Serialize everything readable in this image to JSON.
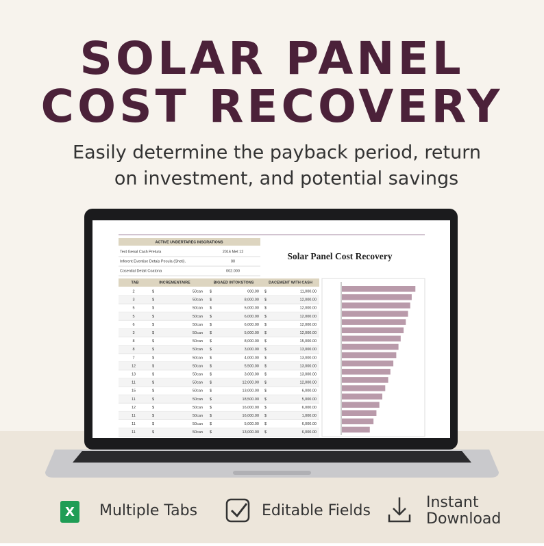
{
  "header": {
    "title_lines": [
      "SOLAR PANEL",
      "COST RECOVERY"
    ],
    "subtitle_lines": [
      "Easily determine the payback period, return",
      "on investment, and potential savings"
    ]
  },
  "spreadsheet": {
    "title": "Solar Panel Cost Recovery",
    "info_box": {
      "heading": "ACTIVE UNDERTAREC INSGRATIONS",
      "rows": [
        [
          "Text Genal Cash Pretura",
          "2016 Met 12"
        ],
        [
          "Inferent Eventise Detais Pecula (Sheti).",
          "00"
        ],
        [
          "Cosential Detait Coatona",
          "002.000"
        ]
      ]
    },
    "currency": "$",
    "table": {
      "columns": [
        "TAB",
        "INCREMENTAIRE",
        "BIGAED INTOKSTONS",
        "DACEMENT WITH CASH"
      ],
      "rows": [
        [
          "2",
          "50can",
          "000.00",
          "11,000.00"
        ],
        [
          "3",
          "50can",
          "8,000.00",
          "12,000.00"
        ],
        [
          "5",
          "50can",
          "5,000.00",
          "12,000.00"
        ],
        [
          "5",
          "50can",
          "6,000.00",
          "12,000.00"
        ],
        [
          "6",
          "50can",
          "6,000.00",
          "12,000.00"
        ],
        [
          "3",
          "50can",
          "5,000.00",
          "12,000.00"
        ],
        [
          "8",
          "50can",
          "8,000.00",
          "15,000.00"
        ],
        [
          "8",
          "50can",
          "3,000.00",
          "13,000.00"
        ],
        [
          "7",
          "50can",
          "4,000.00",
          "13,000.00"
        ],
        [
          "12",
          "50can",
          "5,500.00",
          "13,000.00"
        ],
        [
          "13",
          "50can",
          "3,000.00",
          "13,000.00"
        ],
        [
          "11",
          "50can",
          "12,000.00",
          "12,000.00"
        ],
        [
          "15",
          "50can",
          "13,000.00",
          "6,000.00"
        ],
        [
          "11",
          "50can",
          "18,500.00",
          "5,000.00"
        ],
        [
          "12",
          "50can",
          "16,000.00",
          "6,000.00"
        ],
        [
          "11",
          "50can",
          "16,000.00",
          "1,000.00"
        ],
        [
          "11",
          "50can",
          "5,000.00",
          "6,000.00"
        ],
        [
          "11",
          "50can",
          "13,000.00",
          "6,000.00"
        ]
      ]
    },
    "chart": {
      "type": "bar",
      "orientation": "horizontal",
      "color": "#b99aaa",
      "xlim": [
        0,
        110
      ],
      "values": [
        100,
        95,
        93,
        90,
        87,
        84,
        80,
        77,
        74,
        70,
        66,
        63,
        59,
        55,
        51,
        47,
        43,
        38
      ]
    }
  },
  "features": [
    {
      "label": "Multiple Tabs"
    },
    {
      "label": "Editable Fields"
    },
    {
      "label": "Instant Download"
    }
  ]
}
